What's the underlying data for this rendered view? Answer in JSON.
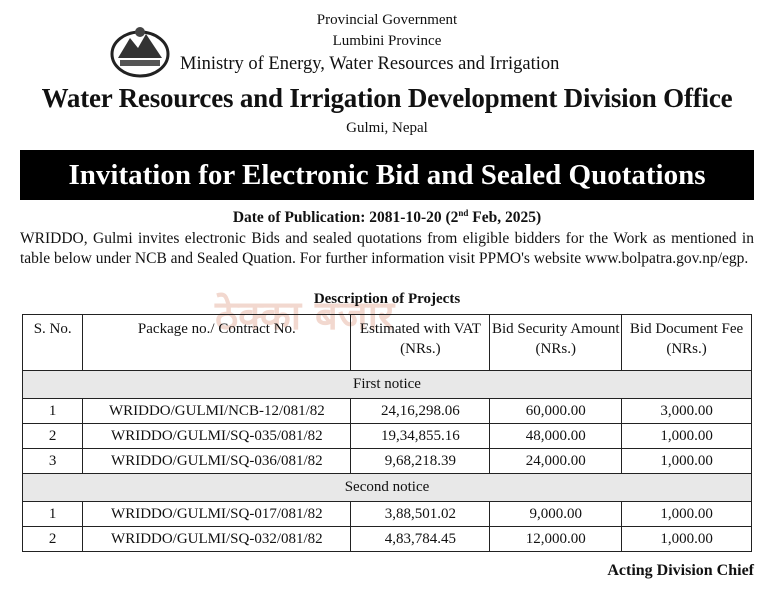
{
  "header": {
    "line1": "Provincial Government",
    "line2": "Lumbini Province",
    "ministry": "Ministry of Energy, Water Resources and Irrigation",
    "office": "Water Resources and Irrigation Development Division Office",
    "location": "Gulmi, Nepal"
  },
  "banner": "Invitation for Electronic Bid and Sealed Quotations",
  "date": {
    "prefix": "Date of Publication: 2081-10-20 (2",
    "sup": "nd",
    "suffix": " Feb, 2025)"
  },
  "paragraph": "WRIDDO, Gulmi invites electronic Bids and sealed quotations from eligible bidders for the Work as mentioned in table below under NCB and Sealed Quation. For further information visit PPMO's website www.bolpatra.gov.np/egp.",
  "watermark": "ठेक्का बजार",
  "table": {
    "caption": "Description of Projects",
    "columns": [
      "S. No.",
      "Package no./ Contract No.",
      "Estimated with VAT (NRs.)",
      "Bid Security Amount (NRs.)",
      "Bid Document Fee (NRs.)"
    ],
    "sections": [
      {
        "title": "First notice",
        "rows": [
          [
            "1",
            "WRIDDO/GULMI/NCB-12/081/82",
            "24,16,298.06",
            "60,000.00",
            "3,000.00"
          ],
          [
            "2",
            "WRIDDO/GULMI/SQ-035/081/82",
            "19,34,855.16",
            "48,000.00",
            "1,000.00"
          ],
          [
            "3",
            "WRIDDO/GULMI/SQ-036/081/82",
            "9,68,218.39",
            "24,000.00",
            "1,000.00"
          ]
        ]
      },
      {
        "title": "Second notice",
        "rows": [
          [
            "1",
            "WRIDDO/GULMI/SQ-017/081/82",
            "3,88,501.02",
            "9,000.00",
            "1,000.00"
          ],
          [
            "2",
            "WRIDDO/GULMI/SQ-032/081/82",
            "4,83,784.45",
            "12,000.00",
            "1,000.00"
          ]
        ]
      }
    ]
  },
  "signature": "Acting Division Chief"
}
